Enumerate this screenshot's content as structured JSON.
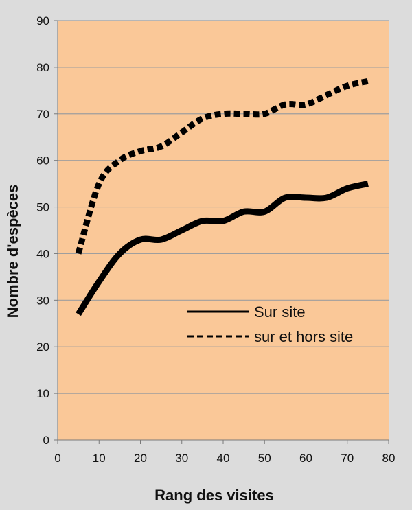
{
  "chart_data": {
    "type": "line",
    "xlabel": "Rang des visites",
    "ylabel": "Nombre d'espèces",
    "xlim": [
      0,
      80
    ],
    "ylim": [
      0,
      90
    ],
    "x_ticks": [
      0,
      10,
      20,
      30,
      40,
      50,
      60,
      70,
      80
    ],
    "y_ticks": [
      0,
      10,
      20,
      30,
      40,
      50,
      60,
      70,
      80,
      90
    ],
    "grid": "horizontal",
    "legend_position": "center-right",
    "colors": {
      "plot_background": "#fac898",
      "outer_background": "#dcdcdc",
      "gridline": "#9e9e9e",
      "line": "#000000"
    },
    "series": [
      {
        "name": "Sur site",
        "style": "solid",
        "x": [
          5,
          10,
          15,
          20,
          25,
          30,
          35,
          40,
          45,
          50,
          55,
          60,
          65,
          70,
          75
        ],
        "y": [
          27,
          34,
          40,
          43,
          43,
          45,
          47,
          47,
          49,
          49,
          52,
          52,
          52,
          54,
          55
        ]
      },
      {
        "name": "sur et hors site",
        "style": "dashed",
        "x": [
          5,
          10,
          15,
          20,
          25,
          30,
          35,
          40,
          45,
          50,
          55,
          60,
          65,
          70,
          75
        ],
        "y": [
          40,
          55,
          60,
          62,
          63,
          66,
          69,
          70,
          70,
          70,
          72,
          72,
          74,
          76,
          77
        ]
      }
    ]
  }
}
